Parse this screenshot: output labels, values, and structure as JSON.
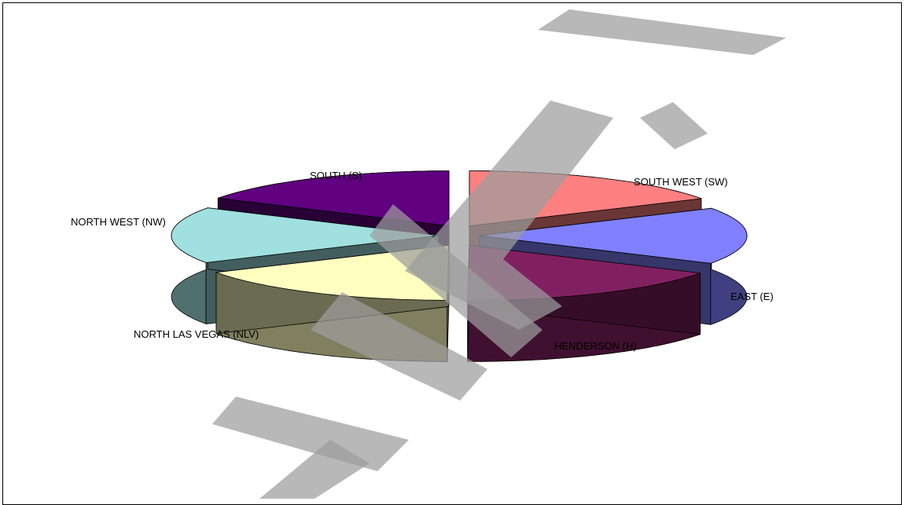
{
  "chart_data": {
    "type": "pie",
    "style": "3d-exploded",
    "legend": "none",
    "slices": [
      {
        "label": "SOUTH WEST (SW)",
        "value": 16.7,
        "color": "#ff8080"
      },
      {
        "label": "EAST (E)",
        "value": 16.7,
        "color": "#8080ff"
      },
      {
        "label": "HENDERSON (H)",
        "value": 16.7,
        "color": "#802060"
      },
      {
        "label": "NORTH LAS VEGAS (NLV)",
        "value": 16.7,
        "color": "#ffffc0"
      },
      {
        "label": "NORTH WEST (NW)",
        "value": 16.6,
        "color": "#a0e0e0"
      },
      {
        "label": "SOUTH (S)",
        "value": 16.6,
        "color": "#600080"
      }
    ]
  },
  "watermark": {
    "text": "SAMPLE",
    "color": "#9c9c9c"
  }
}
